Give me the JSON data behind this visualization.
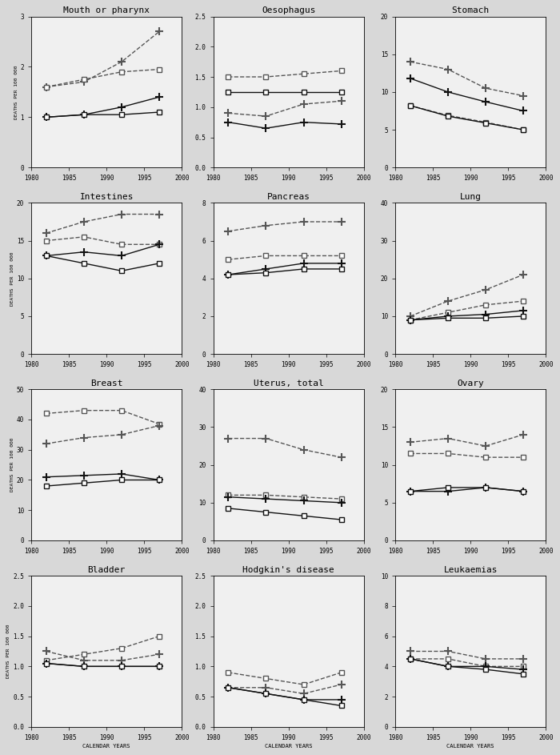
{
  "years": [
    1982,
    1987,
    1992,
    1997
  ],
  "subplots": [
    {
      "title": "Mouth or pharynx",
      "ylim": [
        0,
        3
      ],
      "yticks": [
        0,
        1,
        2,
        3
      ],
      "series": [
        {
          "values": [
            1.6,
            1.7,
            2.1,
            2.7
          ],
          "marker": "+",
          "solid": false
        },
        {
          "values": [
            1.6,
            1.75,
            1.9,
            1.95
          ],
          "marker": "s",
          "solid": false
        },
        {
          "values": [
            1.0,
            1.05,
            1.2,
            1.4
          ],
          "marker": "+",
          "solid": true
        },
        {
          "values": [
            1.0,
            1.05,
            1.05,
            1.1
          ],
          "marker": "s",
          "solid": true
        }
      ]
    },
    {
      "title": "Oesophagus",
      "ylim": [
        0,
        2.5
      ],
      "yticks": [
        0.0,
        0.5,
        1.0,
        1.5,
        2.0,
        2.5
      ],
      "series": [
        {
          "values": [
            1.5,
            1.5,
            1.55,
            1.6
          ],
          "marker": "s",
          "solid": false
        },
        {
          "values": [
            1.25,
            1.25,
            1.25,
            1.25
          ],
          "marker": "s",
          "solid": true
        },
        {
          "values": [
            0.9,
            0.85,
            1.05,
            1.1
          ],
          "marker": "+",
          "solid": false
        },
        {
          "values": [
            0.75,
            0.65,
            0.75,
            0.72
          ],
          "marker": "+",
          "solid": true
        }
      ]
    },
    {
      "title": "Stomach",
      "ylim": [
        0,
        20
      ],
      "yticks": [
        0,
        5,
        10,
        15,
        20
      ],
      "series": [
        {
          "values": [
            14.0,
            13.0,
            10.5,
            9.5
          ],
          "marker": "+",
          "solid": false
        },
        {
          "values": [
            11.8,
            10.0,
            8.7,
            7.5
          ],
          "marker": "+",
          "solid": true
        },
        {
          "values": [
            8.2,
            6.9,
            6.0,
            5.0
          ],
          "marker": "s",
          "solid": false
        },
        {
          "values": [
            8.2,
            6.8,
            5.9,
            5.0
          ],
          "marker": "s",
          "solid": true
        }
      ]
    },
    {
      "title": "Intestines",
      "ylim": [
        0,
        20
      ],
      "yticks": [
        0,
        5,
        10,
        15,
        20
      ],
      "series": [
        {
          "values": [
            16.0,
            17.5,
            18.5,
            18.5
          ],
          "marker": "+",
          "solid": false
        },
        {
          "values": [
            15.0,
            15.5,
            14.5,
            14.5
          ],
          "marker": "s",
          "solid": false
        },
        {
          "values": [
            13.0,
            13.5,
            13.0,
            14.5
          ],
          "marker": "+",
          "solid": true
        },
        {
          "values": [
            13.0,
            12.0,
            11.0,
            12.0
          ],
          "marker": "s",
          "solid": true
        }
      ]
    },
    {
      "title": "Pancreas",
      "ylim": [
        0,
        8
      ],
      "yticks": [
        0,
        2,
        4,
        6,
        8
      ],
      "series": [
        {
          "values": [
            6.5,
            6.8,
            7.0,
            7.0
          ],
          "marker": "+",
          "solid": false
        },
        {
          "values": [
            5.0,
            5.2,
            5.2,
            5.2
          ],
          "marker": "s",
          "solid": false
        },
        {
          "values": [
            4.2,
            4.5,
            4.8,
            4.8
          ],
          "marker": "+",
          "solid": true
        },
        {
          "values": [
            4.2,
            4.3,
            4.5,
            4.5
          ],
          "marker": "s",
          "solid": true
        }
      ]
    },
    {
      "title": "Lung",
      "ylim": [
        0,
        40
      ],
      "yticks": [
        0,
        10,
        20,
        30,
        40
      ],
      "series": [
        {
          "values": [
            10.0,
            14.0,
            17.0,
            21.0
          ],
          "marker": "+",
          "solid": false
        },
        {
          "values": [
            9.0,
            11.0,
            13.0,
            14.0
          ],
          "marker": "s",
          "solid": false
        },
        {
          "values": [
            9.0,
            10.0,
            10.5,
            11.5
          ],
          "marker": "+",
          "solid": true
        },
        {
          "values": [
            9.0,
            9.5,
            9.5,
            10.0
          ],
          "marker": "s",
          "solid": true
        }
      ]
    },
    {
      "title": "Breast",
      "ylim": [
        0,
        50
      ],
      "yticks": [
        0,
        10,
        20,
        30,
        40,
        50
      ],
      "series": [
        {
          "values": [
            42.0,
            43.0,
            43.0,
            38.5
          ],
          "marker": "s",
          "solid": false
        },
        {
          "values": [
            32.0,
            34.0,
            35.0,
            38.0
          ],
          "marker": "+",
          "solid": false
        },
        {
          "values": [
            21.0,
            21.5,
            22.0,
            20.0
          ],
          "marker": "+",
          "solid": true
        },
        {
          "values": [
            18.0,
            19.0,
            20.0,
            20.0
          ],
          "marker": "s",
          "solid": true
        }
      ]
    },
    {
      "title": "Uterus, total",
      "ylim": [
        0,
        40
      ],
      "yticks": [
        0,
        10,
        20,
        30,
        40
      ],
      "series": [
        {
          "values": [
            27.0,
            27.0,
            24.0,
            22.0
          ],
          "marker": "+",
          "solid": false
        },
        {
          "values": [
            12.0,
            12.0,
            11.5,
            11.0
          ],
          "marker": "s",
          "solid": false
        },
        {
          "values": [
            11.5,
            11.0,
            10.5,
            10.0
          ],
          "marker": "+",
          "solid": true
        },
        {
          "values": [
            8.5,
            7.5,
            6.5,
            5.5
          ],
          "marker": "s",
          "solid": true
        }
      ]
    },
    {
      "title": "Ovary",
      "ylim": [
        0,
        20
      ],
      "yticks": [
        0,
        5,
        10,
        15,
        20
      ],
      "series": [
        {
          "values": [
            13.0,
            13.5,
            12.5,
            14.0
          ],
          "marker": "+",
          "solid": false
        },
        {
          "values": [
            11.5,
            11.5,
            11.0,
            11.0
          ],
          "marker": "s",
          "solid": false
        },
        {
          "values": [
            6.5,
            6.5,
            7.0,
            6.5
          ],
          "marker": "+",
          "solid": true
        },
        {
          "values": [
            6.5,
            7.0,
            7.0,
            6.5
          ],
          "marker": "s",
          "solid": true
        }
      ]
    },
    {
      "title": "Bladder",
      "ylim": [
        0,
        2.5
      ],
      "yticks": [
        0.0,
        0.5,
        1.0,
        1.5,
        2.0,
        2.5
      ],
      "series": [
        {
          "values": [
            1.1,
            1.2,
            1.3,
            1.5
          ],
          "marker": "s",
          "solid": false
        },
        {
          "values": [
            1.25,
            1.1,
            1.1,
            1.2
          ],
          "marker": "+",
          "solid": false
        },
        {
          "values": [
            1.05,
            1.0,
            1.0,
            1.0
          ],
          "marker": "+",
          "solid": true
        },
        {
          "values": [
            1.05,
            1.0,
            1.0,
            1.0
          ],
          "marker": "s",
          "solid": true
        }
      ]
    },
    {
      "title": "Hodgkin's disease",
      "ylim": [
        0,
        2.5
      ],
      "yticks": [
        0.0,
        0.5,
        1.0,
        1.5,
        2.0,
        2.5
      ],
      "series": [
        {
          "values": [
            0.9,
            0.8,
            0.7,
            0.9
          ],
          "marker": "s",
          "solid": false
        },
        {
          "values": [
            0.65,
            0.65,
            0.55,
            0.7
          ],
          "marker": "+",
          "solid": false
        },
        {
          "values": [
            0.65,
            0.55,
            0.45,
            0.45
          ],
          "marker": "+",
          "solid": true
        },
        {
          "values": [
            0.65,
            0.55,
            0.45,
            0.35
          ],
          "marker": "s",
          "solid": true
        }
      ]
    },
    {
      "title": "Leukaemias",
      "ylim": [
        0,
        10
      ],
      "yticks": [
        0,
        2,
        4,
        6,
        8,
        10
      ],
      "series": [
        {
          "values": [
            5.0,
            5.0,
            4.5,
            4.5
          ],
          "marker": "+",
          "solid": false
        },
        {
          "values": [
            4.5,
            4.5,
            4.0,
            4.0
          ],
          "marker": "s",
          "solid": false
        },
        {
          "values": [
            4.5,
            4.0,
            4.0,
            3.8
          ],
          "marker": "+",
          "solid": true
        },
        {
          "values": [
            4.5,
            4.0,
            3.8,
            3.5
          ],
          "marker": "s",
          "solid": true
        }
      ]
    }
  ],
  "xlabel": "CALENDAR YEARS",
  "ylabel": "DEATHS PER 100 000",
  "xticks": [
    1980,
    1985,
    1990,
    1995,
    2000
  ],
  "fig_facecolor": "#d8d8d8",
  "ax_facecolor": "#f0f0f0"
}
